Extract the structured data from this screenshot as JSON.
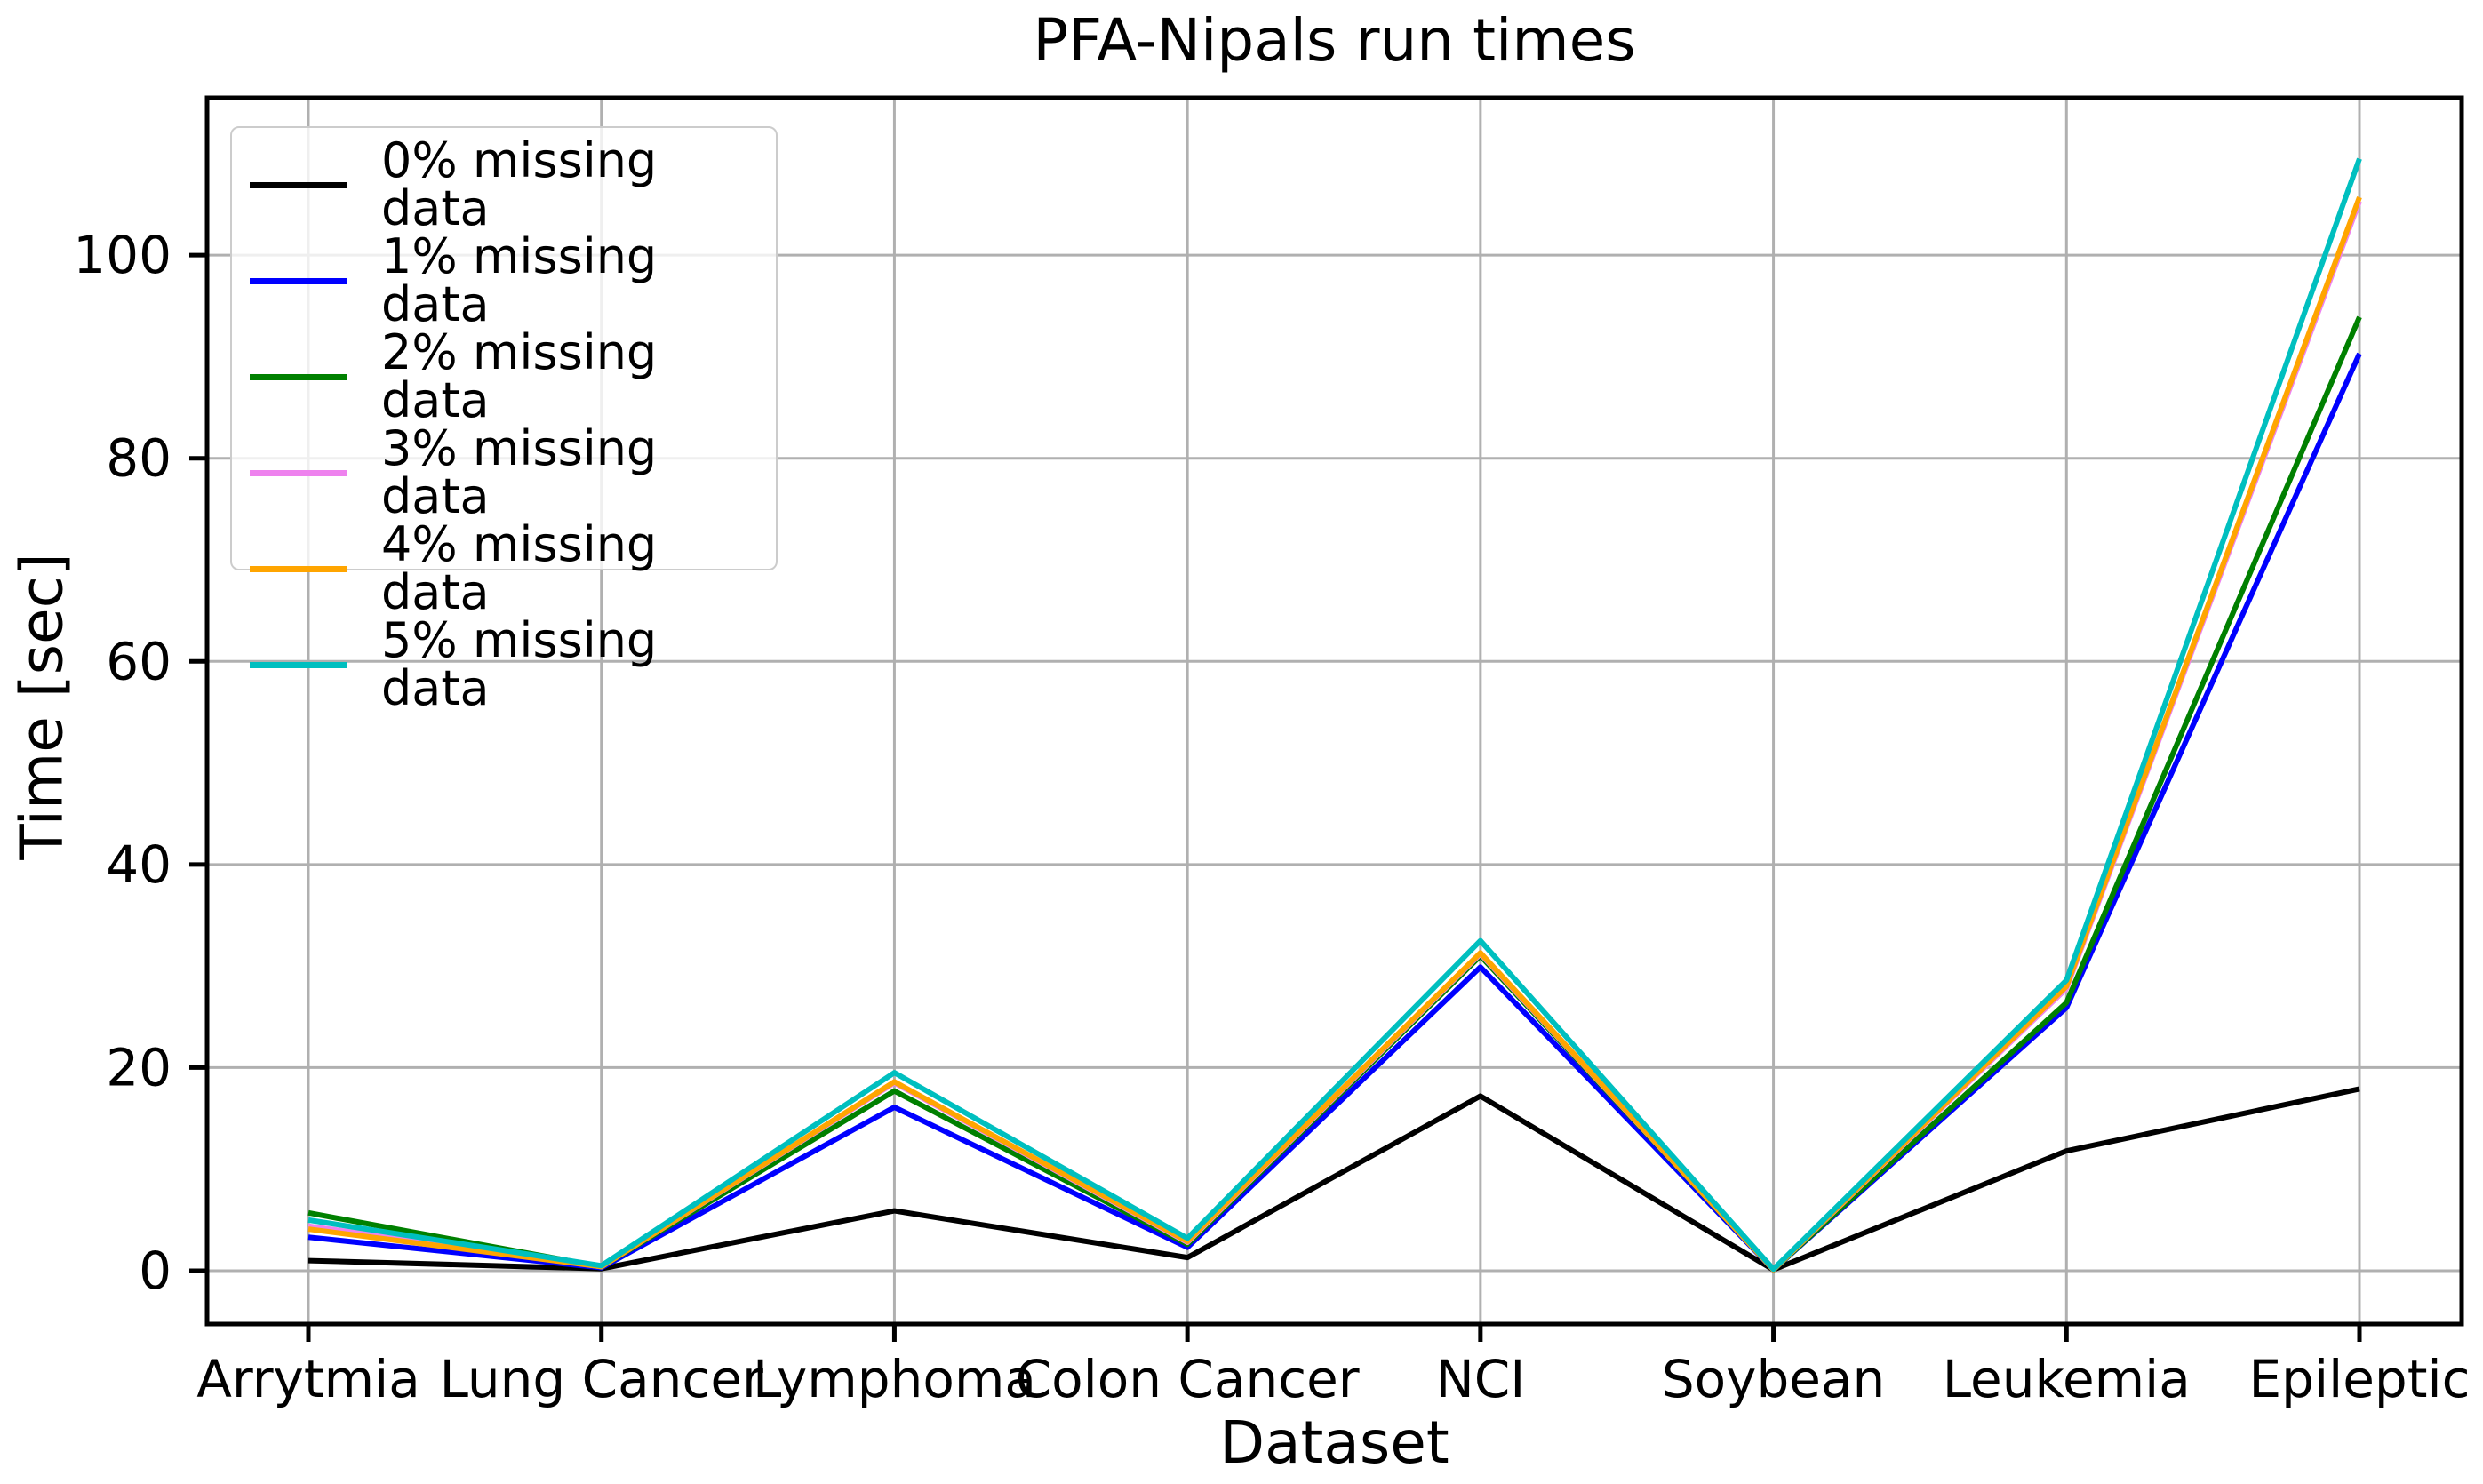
{
  "chart_data": {
    "type": "line",
    "title": "PFA-Nipals run times",
    "xlabel": "Dataset",
    "ylabel": "Time [sec]",
    "categories": [
      "Arrytmia",
      "Lung Cancer",
      "Lymphoma",
      "Colon Cancer",
      "NCI",
      "Soybean",
      "Leukemia",
      "Epileptic"
    ],
    "yticks": [
      0,
      20,
      40,
      60,
      80,
      100
    ],
    "ylim": [
      -5.25,
      115.5
    ],
    "grid": true,
    "legend_position": "upper left",
    "grid_color": "#b0b0b0",
    "spine_color": "#000000",
    "series": [
      {
        "name": "0% missing data",
        "color": "#000000",
        "values": [
          1.0,
          0.2,
          5.9,
          1.3,
          17.2,
          0.1,
          11.8,
          17.9
        ]
      },
      {
        "name": "1% missing data",
        "color": "#0000ff",
        "values": [
          3.3,
          0.3,
          16.1,
          2.3,
          29.9,
          0.1,
          25.9,
          90.3
        ]
      },
      {
        "name": "2% missing data",
        "color": "#008000",
        "values": [
          5.7,
          0.4,
          17.7,
          2.6,
          31.0,
          0.1,
          26.4,
          93.9
        ]
      },
      {
        "name": "3% missing data",
        "color": "#ee82ee",
        "values": [
          4.4,
          0.4,
          18.5,
          2.8,
          31.2,
          0.1,
          27.8,
          105.3
        ]
      },
      {
        "name": "4% missing data",
        "color": "#ffa500",
        "values": [
          4.1,
          0.4,
          18.6,
          2.9,
          31.3,
          0.1,
          28.0,
          105.7
        ]
      },
      {
        "name": "5% missing data",
        "color": "#00bfbf",
        "values": [
          5.0,
          0.5,
          19.5,
          3.2,
          32.5,
          0.15,
          28.6,
          109.5
        ]
      }
    ]
  }
}
